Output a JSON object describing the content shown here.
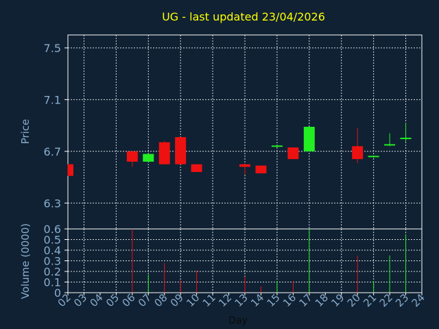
{
  "chart_data": {
    "type": "candlestick",
    "title": "UG - last updated 23/04/2026",
    "xlabel": "Day",
    "ylabel_price": "Price",
    "ylabel_volume": "Volume (0000)",
    "x_ticks": [
      "02",
      "03",
      "04",
      "05",
      "06",
      "07",
      "08",
      "09",
      "10",
      "11",
      "12",
      "13",
      "14",
      "15",
      "16",
      "17",
      "18",
      "19",
      "20",
      "21",
      "22",
      "23",
      "24"
    ],
    "price_ticks": [
      "6.3",
      "6.7",
      "7.1",
      "7.5"
    ],
    "price_tick_values": [
      6.3,
      6.7,
      7.1,
      7.5
    ],
    "price_range": [
      6.1,
      7.6
    ],
    "volume_ticks": [
      "0",
      "0.1",
      "0.2",
      "0.3",
      "0.4",
      "0.5",
      "0.6"
    ],
    "volume_tick_values": [
      0,
      0.1,
      0.2,
      0.3,
      0.4,
      0.5,
      0.6
    ],
    "volume_range": [
      0,
      0.6
    ],
    "grid": true,
    "colors": {
      "up": "#22ee22",
      "down": "#ee1111",
      "title": "#ffff00",
      "axis_text": "#8aaccc",
      "grid": "#ffffff",
      "background": "#0f2133"
    },
    "candles": [
      {
        "day": 2,
        "open": 6.6,
        "high": 6.6,
        "low": 6.51,
        "close": 6.51,
        "volume": 0.0
      },
      {
        "day": 6,
        "open": 6.7,
        "high": 6.7,
        "low": 6.58,
        "close": 6.62,
        "volume": 0.6
      },
      {
        "day": 7,
        "open": 6.62,
        "high": 6.68,
        "low": 6.62,
        "close": 6.68,
        "volume": 0.17
      },
      {
        "day": 8,
        "open": 6.77,
        "high": 6.78,
        "low": 6.6,
        "close": 6.6,
        "volume": 0.28
      },
      {
        "day": 9,
        "open": 6.81,
        "high": 6.81,
        "low": 6.6,
        "close": 6.6,
        "volume": 0.12
      },
      {
        "day": 10,
        "open": 6.6,
        "high": 6.6,
        "low": 6.54,
        "close": 6.54,
        "volume": 0.21
      },
      {
        "day": 13,
        "open": 6.6,
        "high": 6.6,
        "low": 6.52,
        "close": 6.58,
        "volume": 0.15
      },
      {
        "day": 14,
        "open": 6.59,
        "high": 6.59,
        "low": 6.53,
        "close": 6.53,
        "volume": 0.06
      },
      {
        "day": 15,
        "open": 6.73,
        "high": 6.74,
        "low": 6.73,
        "close": 6.74,
        "volume": 0.11
      },
      {
        "day": 16,
        "open": 6.73,
        "high": 6.73,
        "low": 6.64,
        "close": 6.64,
        "volume": 0.11
      },
      {
        "day": 17,
        "open": 6.7,
        "high": 6.89,
        "low": 6.7,
        "close": 6.89,
        "volume": 0.6
      },
      {
        "day": 20,
        "open": 6.74,
        "high": 6.88,
        "low": 6.61,
        "close": 6.64,
        "volume": 0.35
      },
      {
        "day": 21,
        "open": 6.65,
        "high": 6.66,
        "low": 6.65,
        "close": 6.66,
        "volume": 0.11
      },
      {
        "day": 22,
        "open": 6.74,
        "high": 6.84,
        "low": 6.74,
        "close": 6.75,
        "volume": 0.35
      },
      {
        "day": 23,
        "open": 6.79,
        "high": 6.92,
        "low": 6.77,
        "close": 6.8,
        "volume": 0.55
      }
    ]
  }
}
